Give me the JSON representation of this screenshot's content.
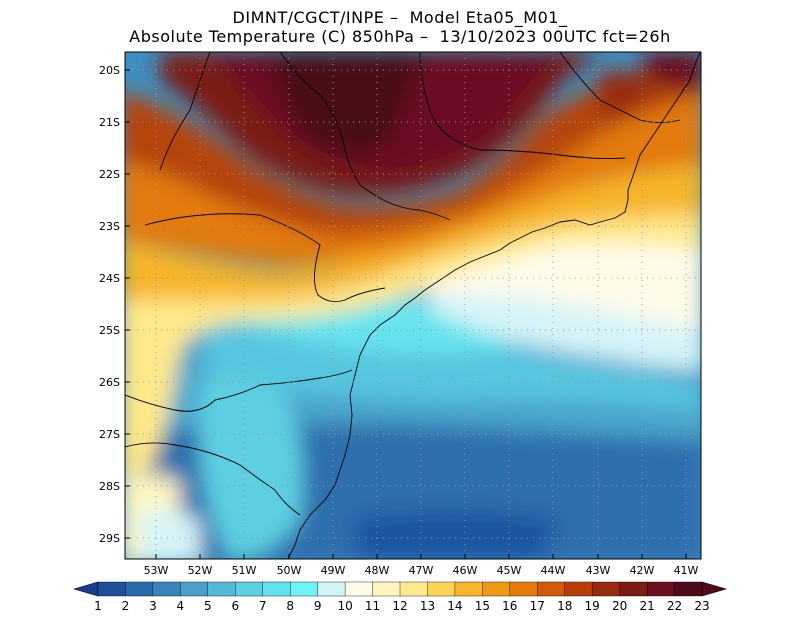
{
  "title_line1": "DIMNT/CGCT/INPE –  Model Eta05_M01_",
  "title_line2": "Absolute Temperature (C) 850hPa –  13/10/2023 00UTC fct=26h",
  "lat_labels": [
    "20S",
    "21S",
    "22S",
    "23S",
    "24S",
    "25S",
    "26S",
    "27S",
    "28S",
    "29S"
  ],
  "lon_labels": [
    "53W",
    "52W",
    "51W",
    "50W",
    "49W",
    "48W",
    "47W",
    "46W",
    "45W",
    "44W",
    "43W",
    "42W",
    "41W"
  ],
  "colorbar": {
    "labels": [
      "1",
      "2",
      "3",
      "4",
      "5",
      "6",
      "7",
      "8",
      "9",
      "10",
      "11",
      "12",
      "13",
      "14",
      "15",
      "16",
      "17",
      "18",
      "19",
      "20",
      "21",
      "22",
      "23"
    ],
    "colors": [
      "#1b3b8e",
      "#1f4f9c",
      "#2a69aa",
      "#3a84bb",
      "#4aa0c8",
      "#53b9d7",
      "#5ccfe2",
      "#62e1ee",
      "#6ff2f5",
      "#cff3f7",
      "#fffbe9",
      "#fff6bf",
      "#ffe98c",
      "#fcd457",
      "#f6b52a",
      "#ee9a12",
      "#e67b0a",
      "#d35b08",
      "#b84008",
      "#982a0f",
      "#7c1b15",
      "#6b0f1f",
      "#4e0a17"
    ]
  }
}
